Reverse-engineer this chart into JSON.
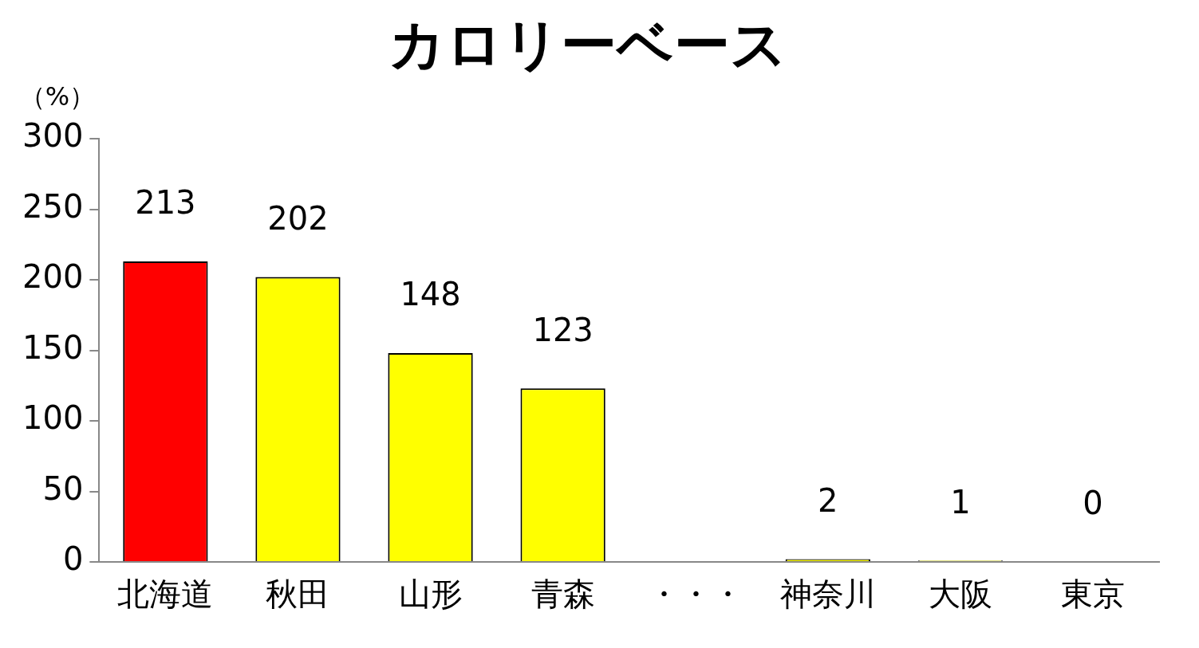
{
  "chart_data": {
    "type": "bar",
    "title": "カロリーベース",
    "ylabel": "（%）",
    "categories": [
      "北海道",
      "秋田",
      "山形",
      "青森",
      "・・・",
      "神奈川",
      "大阪",
      "東京"
    ],
    "values": [
      213,
      202,
      148,
      123,
      null,
      2,
      1,
      0
    ],
    "colors": [
      "#ff0000",
      "#ffff00",
      "#ffff00",
      "#ffff00",
      "#ffff00",
      "#ffff00",
      "#ffff00",
      "#ffff00"
    ],
    "ylim": [
      0,
      300
    ],
    "yticks": [
      0,
      50,
      100,
      150,
      200,
      250,
      300
    ],
    "grid": false,
    "legend": false,
    "data_labels": true
  }
}
